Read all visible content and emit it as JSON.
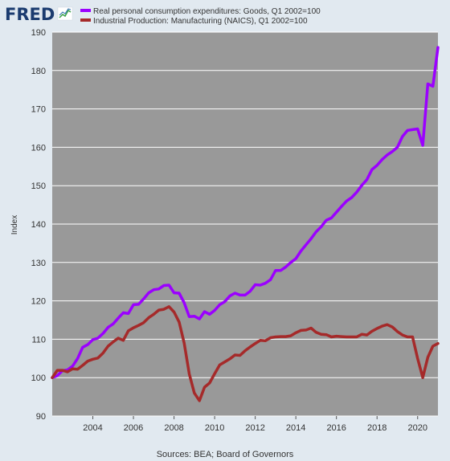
{
  "logo": {
    "text": "FRED",
    "icon": "fred-chart-logo-icon"
  },
  "colors": {
    "background": "#e1e9f0",
    "plot_bg": "#999999",
    "grid": "#ffffff",
    "series_1": "#9b00ff",
    "series_2": "#a52a2a"
  },
  "source_text": "Sources: BEA; Board of Governors",
  "chart_data": {
    "type": "line",
    "title": "",
    "xlabel": "",
    "ylabel": "Index",
    "ylim": [
      90,
      190
    ],
    "xlim": [
      2002.0,
      2021.0
    ],
    "yticks": [
      90,
      100,
      110,
      120,
      130,
      140,
      150,
      160,
      170,
      180,
      190
    ],
    "xticks": [
      2004,
      2006,
      2008,
      2010,
      2012,
      2014,
      2016,
      2018,
      2020
    ],
    "grid": true,
    "legend_position": "top-left",
    "series": [
      {
        "name": "Real personal consumption expenditures: Goods, Q1 2002=100",
        "color": "#9b00ff",
        "x": [
          2002.0,
          2002.25,
          2002.5,
          2002.75,
          2003.0,
          2003.25,
          2003.5,
          2003.75,
          2004.0,
          2004.25,
          2004.5,
          2004.75,
          2005.0,
          2005.25,
          2005.5,
          2005.75,
          2006.0,
          2006.25,
          2006.5,
          2006.75,
          2007.0,
          2007.25,
          2007.5,
          2007.75,
          2008.0,
          2008.25,
          2008.5,
          2008.75,
          2009.0,
          2009.25,
          2009.5,
          2009.75,
          2010.0,
          2010.25,
          2010.5,
          2010.75,
          2011.0,
          2011.25,
          2011.5,
          2011.75,
          2012.0,
          2012.25,
          2012.5,
          2012.75,
          2013.0,
          2013.25,
          2013.5,
          2013.75,
          2014.0,
          2014.25,
          2014.5,
          2014.75,
          2015.0,
          2015.25,
          2015.5,
          2015.75,
          2016.0,
          2016.25,
          2016.5,
          2016.75,
          2017.0,
          2017.25,
          2017.5,
          2017.75,
          2018.0,
          2018.25,
          2018.5,
          2018.75,
          2019.0,
          2019.25,
          2019.5,
          2019.75,
          2020.0,
          2020.25,
          2020.5,
          2020.75,
          2021.0
        ],
        "y": [
          100.0,
          100.5,
          101.8,
          102.0,
          103.0,
          105.0,
          107.9,
          108.6,
          109.9,
          110.3,
          111.5,
          113.1,
          114.0,
          115.5,
          116.9,
          116.7,
          119.0,
          119.1,
          120.5,
          122.1,
          122.9,
          123.1,
          124.0,
          124.1,
          122.1,
          122.0,
          119.5,
          115.9,
          116.0,
          115.3,
          117.2,
          116.5,
          117.5,
          119.0,
          119.8,
          121.3,
          122.0,
          121.5,
          121.5,
          122.5,
          124.2,
          124.1,
          124.6,
          125.5,
          127.9,
          127.9,
          128.8,
          130.0,
          131.0,
          133.0,
          134.6,
          136.2,
          138.0,
          139.3,
          141.0,
          141.6,
          143.1,
          144.6,
          146.0,
          146.9,
          148.3,
          150.1,
          151.6,
          154.2,
          155.3,
          156.8,
          158.0,
          158.9,
          160.0,
          162.8,
          164.4,
          164.6,
          164.8,
          160.5,
          176.5,
          175.9,
          186.0
        ]
      },
      {
        "name": "Industrial Production: Manufacturing (NAICS), Q1 2002=100",
        "color": "#a52a2a",
        "x": [
          2002.0,
          2002.25,
          2002.5,
          2002.75,
          2003.0,
          2003.25,
          2003.5,
          2003.75,
          2004.0,
          2004.25,
          2004.5,
          2004.75,
          2005.0,
          2005.25,
          2005.5,
          2005.75,
          2006.0,
          2006.25,
          2006.5,
          2006.75,
          2007.0,
          2007.25,
          2007.5,
          2007.75,
          2008.0,
          2008.25,
          2008.5,
          2008.75,
          2009.0,
          2009.25,
          2009.5,
          2009.75,
          2010.0,
          2010.25,
          2010.5,
          2010.75,
          2011.0,
          2011.25,
          2011.5,
          2011.75,
          2012.0,
          2012.25,
          2012.5,
          2012.75,
          2013.0,
          2013.25,
          2013.5,
          2013.75,
          2014.0,
          2014.25,
          2014.5,
          2014.75,
          2015.0,
          2015.25,
          2015.5,
          2015.75,
          2016.0,
          2016.25,
          2016.5,
          2016.75,
          2017.0,
          2017.25,
          2017.5,
          2017.75,
          2018.0,
          2018.25,
          2018.5,
          2018.75,
          2019.0,
          2019.25,
          2019.5,
          2019.75,
          2020.0,
          2020.25,
          2020.5,
          2020.75,
          2021.0
        ],
        "y": [
          100.0,
          101.9,
          101.9,
          101.5,
          102.3,
          102.2,
          103.2,
          104.3,
          104.8,
          105.1,
          106.4,
          108.2,
          109.3,
          110.3,
          109.7,
          112.2,
          113.0,
          113.6,
          114.3,
          115.6,
          116.5,
          117.6,
          117.8,
          118.5,
          117.1,
          114.5,
          109.0,
          101.0,
          96.0,
          94.0,
          97.5,
          98.6,
          101.0,
          103.3,
          104.1,
          104.9,
          105.9,
          105.8,
          107.0,
          108.0,
          108.9,
          109.7,
          109.6,
          110.4,
          110.6,
          110.7,
          110.7,
          110.9,
          111.7,
          112.3,
          112.4,
          112.9,
          111.8,
          111.3,
          111.2,
          110.6,
          110.8,
          110.7,
          110.6,
          110.6,
          110.6,
          111.3,
          111.1,
          112.1,
          112.8,
          113.4,
          113.8,
          113.2,
          112.0,
          111.1,
          110.6,
          110.6,
          105.0,
          100.0,
          105.3,
          108.2,
          108.9
        ]
      }
    ]
  }
}
